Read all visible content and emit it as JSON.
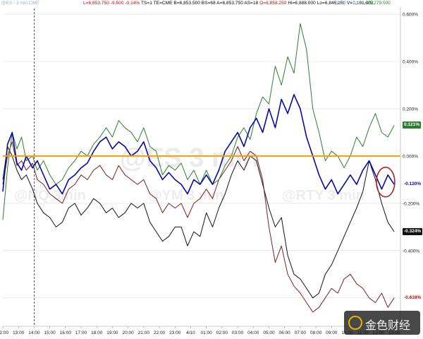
{
  "header": {
    "left_label": "@ES - 3 min  CME",
    "last": "L=6,853.750",
    "change": "-9.500",
    "change_pct": "-0.14%",
    "rest": "TS=1  TE=CME  B=6,853.500  BS=68  A=6,853.750  AS=18",
    "open": "O=6,858.250",
    "hilo": "Hi=6,888.000  Lo=6,846.250  V=1,191,002",
    "right_label": "@NQ - 3 min",
    "right_last": "L=25,279.500"
  },
  "watermarks": {
    "big": "@ES 3 min",
    "left": "@NQ 3min",
    "mid": "@YM 3 min",
    "right": "@RTY 3 min",
    "logo": "金色财经"
  },
  "colors": {
    "nq": "#2f7d32",
    "es": "#0a0aa0",
    "ym": "#7a1f1f",
    "rty": "#111111",
    "zero_line": "#f0a000",
    "highlight": "#b22222",
    "grid": "#d9d9d9"
  },
  "tags": {
    "nq": "0.121%",
    "es": "-0.120%",
    "rty": "-0.324%",
    "ym": "-0.618%"
  },
  "chart_data": {
    "type": "line",
    "x_ticks": [
      "12:00",
      "13:00",
      "14:00",
      "15:00",
      "16:00",
      "17:00",
      "18:00",
      "19:00",
      "20:00",
      "21:00",
      "22:00",
      "23:00",
      "4/10",
      "01:00",
      "02:00",
      "03:00",
      "04:00",
      "05:00",
      "06:00",
      "07:00",
      "08:00",
      "09:00",
      "10:00",
      "11:00",
      "12:00",
      "13:00"
    ],
    "y_ticks": [
      "0.600%",
      "0.400%",
      "0.200%",
      "0.000%",
      "-0.200%",
      "-0.400%",
      "-0.600%"
    ],
    "ylim": [
      -0.72,
      0.63
    ],
    "xlim": [
      0,
      25.4
    ],
    "series": [
      {
        "key": "nq",
        "x": [
          0,
          0.3,
          0.6,
          0.9,
          1.2,
          1.5,
          1.9,
          2.2,
          2.6,
          3,
          3.4,
          3.8,
          4.2,
          4.6,
          5,
          5.4,
          5.8,
          6.2,
          6.6,
          7,
          7.4,
          7.8,
          8.2,
          8.6,
          9,
          9.4,
          9.8,
          10.2,
          10.6,
          11,
          11.4,
          11.8,
          12.2,
          12.6,
          13,
          13.4,
          13.8,
          14.2,
          14.6,
          15,
          15.4,
          15.8,
          16.2,
          16.6,
          17,
          17.4,
          17.8,
          18.2,
          18.6,
          19,
          19.4,
          19.8,
          20.2,
          20.6,
          21,
          21.4,
          21.8,
          22.2,
          22.6,
          23,
          23.4,
          23.8,
          24.2,
          24.6,
          25
        ],
        "values": [
          -0.27,
          -0.05,
          0.1,
          0.03,
          0.08,
          -0.02,
          0.0,
          -0.06,
          -0.02,
          -0.08,
          -0.12,
          -0.1,
          -0.05,
          -0.02,
          0.02,
          0.0,
          0.05,
          0.08,
          0.12,
          0.08,
          0.15,
          0.12,
          0.1,
          0.06,
          0.12,
          0.04,
          0.02,
          -0.08,
          -0.04,
          -0.06,
          -0.03,
          -0.1,
          -0.06,
          -0.12,
          -0.06,
          -0.12,
          -0.1,
          -0.04,
          0.0,
          0.08,
          0.12,
          0.07,
          0.18,
          0.25,
          0.22,
          0.38,
          0.3,
          0.42,
          0.35,
          0.56,
          0.45,
          0.2,
          0.1,
          -0.02,
          0.02,
          0.0,
          -0.05,
          0.0,
          0.08,
          0.04,
          0.12,
          0.18,
          0.1,
          0.08,
          0.13
        ]
      },
      {
        "key": "es",
        "x": [
          0,
          0.3,
          0.6,
          0.9,
          1.2,
          1.5,
          1.9,
          2.2,
          2.6,
          3,
          3.4,
          3.8,
          4.2,
          4.6,
          5,
          5.4,
          5.8,
          6.2,
          6.6,
          7,
          7.4,
          7.8,
          8.2,
          8.6,
          9,
          9.4,
          9.8,
          10.2,
          10.6,
          11,
          11.4,
          11.8,
          12.2,
          12.6,
          13,
          13.4,
          13.8,
          14.2,
          14.6,
          15,
          15.4,
          15.8,
          16.2,
          16.6,
          17,
          17.4,
          17.8,
          18.2,
          18.6,
          19,
          19.4,
          19.8,
          20.2,
          20.6,
          21,
          21.4,
          21.8,
          22.2,
          22.6,
          23,
          23.4,
          23.8,
          24.2,
          24.6,
          25
        ],
        "values": [
          -0.15,
          0.05,
          0.1,
          -0.03,
          -0.06,
          0.0,
          -0.05,
          -0.02,
          -0.08,
          -0.14,
          -0.12,
          -0.16,
          -0.1,
          -0.08,
          -0.05,
          -0.03,
          0.02,
          0.06,
          0.08,
          0.03,
          0.06,
          0.04,
          0.0,
          0.02,
          0.06,
          -0.02,
          -0.05,
          -0.1,
          -0.07,
          -0.1,
          -0.12,
          -0.16,
          -0.1,
          -0.12,
          -0.08,
          -0.12,
          -0.06,
          0.02,
          0.06,
          0.1,
          0.04,
          0.12,
          0.16,
          0.1,
          0.2,
          0.12,
          0.24,
          0.18,
          0.26,
          0.2,
          0.08,
          0.0,
          -0.08,
          -0.14,
          -0.1,
          -0.16,
          -0.12,
          -0.08,
          -0.12,
          -0.06,
          -0.02,
          -0.08,
          -0.14,
          -0.08,
          -0.12
        ]
      },
      {
        "key": "ym",
        "x": [
          0,
          0.3,
          0.6,
          0.9,
          1.2,
          1.5,
          1.9,
          2.2,
          2.6,
          3,
          3.4,
          3.8,
          4.2,
          4.6,
          5,
          5.4,
          5.8,
          6.2,
          6.6,
          7,
          7.4,
          7.8,
          8.2,
          8.6,
          9,
          9.4,
          9.8,
          10.2,
          10.6,
          11,
          11.4,
          11.8,
          12.2,
          12.6,
          13,
          13.4,
          13.8,
          14.2,
          14.6,
          15,
          15.4,
          15.8,
          16.2,
          16.6,
          17,
          17.4,
          17.8,
          18.2,
          18.6,
          19,
          19.4,
          19.8,
          20.2,
          20.6,
          21,
          21.4,
          21.8,
          22.2,
          22.6,
          23,
          23.4,
          23.8,
          24.2,
          24.6,
          25
        ],
        "values": [
          -0.12,
          0.0,
          0.06,
          -0.04,
          -0.02,
          -0.06,
          -0.03,
          -0.1,
          -0.12,
          -0.16,
          -0.18,
          -0.2,
          -0.14,
          -0.12,
          -0.08,
          -0.1,
          -0.06,
          -0.04,
          -0.08,
          -0.1,
          -0.04,
          -0.08,
          -0.1,
          -0.12,
          -0.1,
          -0.16,
          -0.18,
          -0.24,
          -0.2,
          -0.22,
          -0.2,
          -0.26,
          -0.2,
          -0.18,
          -0.14,
          -0.18,
          -0.1,
          -0.06,
          -0.02,
          0.04,
          -0.02,
          0.02,
          0.0,
          -0.1,
          -0.3,
          -0.45,
          -0.38,
          -0.5,
          -0.55,
          -0.58,
          -0.62,
          -0.66,
          -0.64,
          -0.6,
          -0.56,
          -0.58,
          -0.52,
          -0.5,
          -0.54,
          -0.56,
          -0.6,
          -0.62,
          -0.58,
          -0.64,
          -0.6
        ]
      },
      {
        "key": "rty",
        "x": [
          0,
          0.3,
          0.6,
          0.9,
          1.2,
          1.5,
          1.9,
          2.2,
          2.6,
          3,
          3.4,
          3.8,
          4.2,
          4.6,
          5,
          5.4,
          5.8,
          6.2,
          6.6,
          7,
          7.4,
          7.8,
          8.2,
          8.6,
          9,
          9.4,
          9.8,
          10.2,
          10.6,
          11,
          11.4,
          11.8,
          12.2,
          12.6,
          13,
          13.4,
          13.8,
          14.2,
          14.6,
          15,
          15.4,
          15.8,
          16.2,
          16.6,
          17,
          17.4,
          17.8,
          18.2,
          18.6,
          19,
          19.4,
          19.8,
          20.2,
          20.6,
          21,
          21.4,
          21.8,
          22.2,
          22.6,
          23,
          23.4,
          23.8,
          24.2,
          24.6,
          25
        ],
        "values": [
          -0.1,
          0.04,
          0.0,
          -0.06,
          -0.1,
          -0.08,
          -0.14,
          -0.2,
          -0.24,
          -0.26,
          -0.3,
          -0.28,
          -0.22,
          -0.2,
          -0.25,
          -0.22,
          -0.18,
          -0.2,
          -0.24,
          -0.22,
          -0.26,
          -0.24,
          -0.2,
          -0.22,
          -0.2,
          -0.28,
          -0.32,
          -0.36,
          -0.34,
          -0.3,
          -0.3,
          -0.38,
          -0.32,
          -0.34,
          -0.24,
          -0.3,
          -0.22,
          -0.16,
          -0.08,
          -0.02,
          -0.06,
          0.0,
          -0.02,
          -0.12,
          -0.22,
          -0.3,
          -0.26,
          -0.42,
          -0.5,
          -0.52,
          -0.56,
          -0.6,
          -0.58,
          -0.5,
          -0.46,
          -0.4,
          -0.34,
          -0.28,
          -0.22,
          -0.15,
          -0.02,
          -0.1,
          -0.2,
          -0.28,
          -0.32
        ]
      }
    ],
    "zero_line": 0.0,
    "grid": true
  }
}
